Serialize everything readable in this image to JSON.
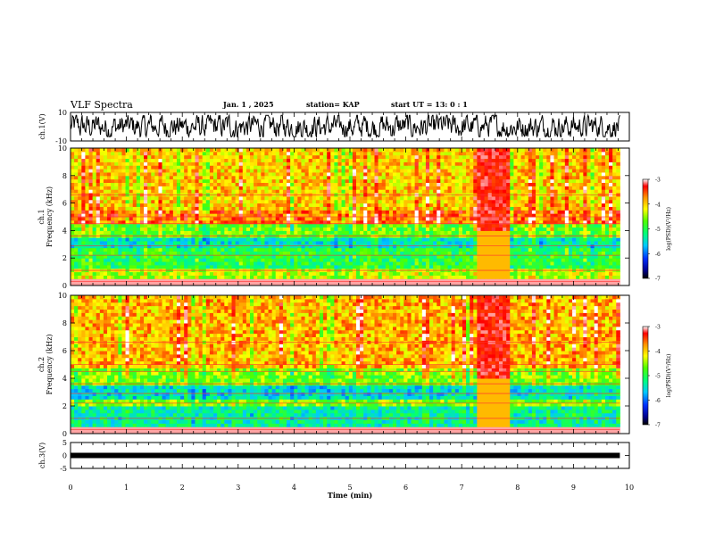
{
  "header": {
    "title": "VLF Spectra",
    "date": "Jan. 1 , 2025",
    "station": "station= KAP",
    "start_ut": "start UT = 13: 0 : 1"
  },
  "chart_data": [
    {
      "type": "line",
      "name": "ch1-waveform",
      "ylabel": "ch.1(V)",
      "ylim": [
        -10,
        10
      ],
      "yticklabels": [
        "10",
        "-10"
      ],
      "xlim": [
        0,
        10
      ],
      "description_values": "noisy waveform fluctuating roughly between -6 and 8 V over 0-9.8 min"
    },
    {
      "type": "heatmap",
      "name": "ch1-spectrogram",
      "ylabel": "ch.1 Frequency (kHz)",
      "ylim": [
        0,
        10
      ],
      "yticks": [
        0,
        2,
        4,
        6,
        8,
        10
      ],
      "xlim": [
        0,
        10
      ],
      "data_extent_min": 9.83,
      "colorbar": {
        "label": "log(PSD)(V²/Hz)",
        "range": [
          -7,
          -3
        ],
        "ticks": [
          -3,
          -4,
          -5,
          -6,
          -7
        ]
      },
      "bands": [
        {
          "f": [
            0,
            0.6
          ],
          "level": -5.0
        },
        {
          "f": [
            0.6,
            1.2
          ],
          "level": -4.4
        },
        {
          "f": [
            1.2,
            2.8
          ],
          "level": -5.0
        },
        {
          "f": [
            2.8,
            3.6
          ],
          "level": -5.4
        },
        {
          "f": [
            3.6,
            4.6
          ],
          "level": -4.7
        },
        {
          "f": [
            4.6,
            5.4
          ],
          "level": -3.6
        },
        {
          "f": [
            5.4,
            10
          ],
          "level": -4.0
        }
      ]
    },
    {
      "type": "heatmap",
      "name": "ch2-spectrogram",
      "ylabel": "ch.2 Frequency (kHz)",
      "ylim": [
        0,
        10
      ],
      "yticks": [
        0,
        2,
        4,
        6,
        8,
        10
      ],
      "xlim": [
        0,
        10
      ],
      "data_extent_min": 9.83,
      "colorbar": {
        "label": "log(PSD)(V²/Hz)",
        "range": [
          -7,
          -3
        ],
        "ticks": [
          -3,
          -4,
          -5,
          -6,
          -7
        ]
      },
      "bands": [
        {
          "f": [
            0,
            0.5
          ],
          "level": -5.2
        },
        {
          "f": [
            0.5,
            2.0
          ],
          "level": -5.3
        },
        {
          "f": [
            2.0,
            2.6
          ],
          "level": -4.6
        },
        {
          "f": [
            2.6,
            3.6
          ],
          "level": -5.5
        },
        {
          "f": [
            3.6,
            4.8
          ],
          "level": -4.6
        },
        {
          "f": [
            4.8,
            10
          ],
          "level": -3.9
        }
      ]
    },
    {
      "type": "line",
      "name": "ch3-waveform",
      "ylabel": "ch.3(V)",
      "ylim": [
        -5,
        5
      ],
      "yticklabels": [
        "5",
        "0",
        "-5"
      ],
      "xlim": [
        0,
        10
      ],
      "description_values": "flat thick trace near 0 V"
    }
  ],
  "x_axis": {
    "label": "Time (min)",
    "ticks": [
      "0",
      "1",
      "2",
      "3",
      "4",
      "5",
      "6",
      "7",
      "8",
      "9",
      "10"
    ]
  }
}
